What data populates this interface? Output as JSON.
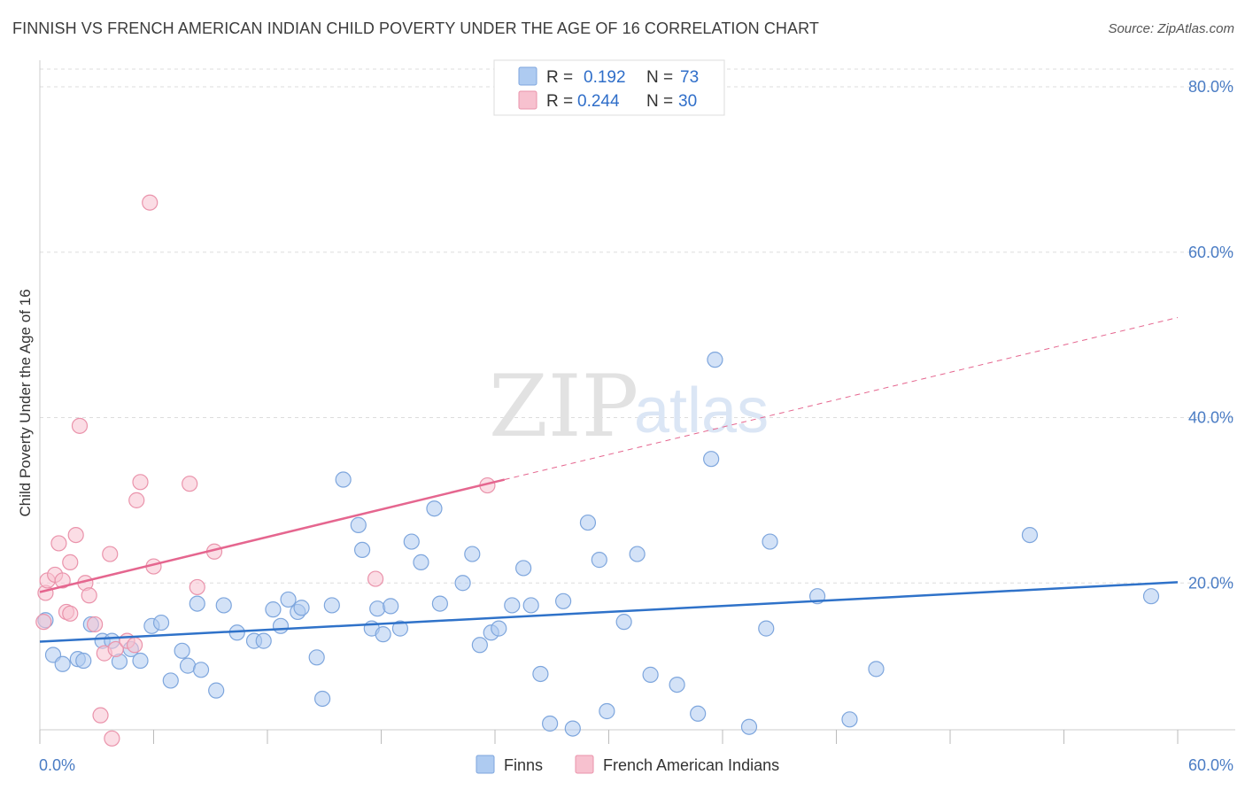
{
  "title": "FINNISH VS FRENCH AMERICAN INDIAN CHILD POVERTY UNDER THE AGE OF 16 CORRELATION CHART",
  "source": "Source: ZipAtlas.com",
  "watermark": {
    "zip": "ZIP",
    "atlas": "atlas"
  },
  "legend": {
    "r_label": "R =",
    "n_label": "N =",
    "finns": {
      "r": "0.192",
      "n": "73"
    },
    "french": {
      "r": "0.244",
      "n": "30"
    }
  },
  "colors": {
    "finns_fill": "#aecbf1",
    "finns_stroke": "#7ea6dd",
    "finns_line": "#2f72c9",
    "french_fill": "#f7c1cf",
    "french_stroke": "#ea93ab",
    "french_line": "#e5668f",
    "grid": "#dddddd",
    "tick_text": "#4a7cc4"
  },
  "chart_data": {
    "type": "scatter",
    "ylabel": "Child Poverty Under the Age of 16",
    "xlabel": "",
    "xlim": [
      0,
      60
    ],
    "ylim": [
      0,
      85
    ],
    "x_tick_labels": [
      {
        "value": 0,
        "label": "0.0%"
      },
      {
        "value": 60,
        "label": "60.0%"
      }
    ],
    "y_tick_labels": [
      {
        "value": 20,
        "label": "20.0%"
      },
      {
        "value": 40,
        "label": "40.0%"
      },
      {
        "value": 60,
        "label": "60.0%"
      },
      {
        "value": 80,
        "label": "80.0%"
      }
    ],
    "grid": true,
    "legend_position": "top-center and bottom",
    "series": [
      {
        "name": "Finns",
        "trend": {
          "x": [
            0,
            60
          ],
          "y": [
            12.9,
            20.1
          ],
          "dashed_after": null
        },
        "points": [
          [
            0.3,
            15.5
          ],
          [
            0.7,
            11.3
          ],
          [
            1.2,
            10.2
          ],
          [
            2.0,
            10.8
          ],
          [
            2.3,
            10.6
          ],
          [
            2.7,
            15.0
          ],
          [
            3.3,
            13.0
          ],
          [
            3.8,
            13.0
          ],
          [
            4.2,
            10.5
          ],
          [
            4.8,
            12.0
          ],
          [
            5.3,
            10.6
          ],
          [
            5.9,
            14.8
          ],
          [
            6.4,
            15.2
          ],
          [
            6.9,
            8.2
          ],
          [
            7.5,
            11.8
          ],
          [
            7.8,
            10.0
          ],
          [
            8.5,
            9.5
          ],
          [
            8.3,
            17.5
          ],
          [
            9.3,
            7.0
          ],
          [
            9.7,
            17.3
          ],
          [
            10.4,
            14.0
          ],
          [
            11.3,
            13.0
          ],
          [
            11.8,
            13.0
          ],
          [
            12.3,
            16.8
          ],
          [
            12.7,
            14.8
          ],
          [
            13.1,
            18.0
          ],
          [
            13.6,
            16.5
          ],
          [
            13.8,
            17.0
          ],
          [
            14.6,
            11.0
          ],
          [
            14.9,
            6.0
          ],
          [
            15.4,
            17.3
          ],
          [
            16.0,
            32.5
          ],
          [
            16.8,
            27.0
          ],
          [
            17.0,
            24.0
          ],
          [
            17.5,
            14.5
          ],
          [
            17.8,
            16.9
          ],
          [
            18.1,
            13.8
          ],
          [
            18.5,
            17.2
          ],
          [
            19.0,
            14.5
          ],
          [
            19.6,
            25.0
          ],
          [
            20.1,
            22.5
          ],
          [
            20.8,
            29.0
          ],
          [
            21.1,
            17.5
          ],
          [
            22.3,
            20.0
          ],
          [
            22.8,
            23.5
          ],
          [
            23.2,
            12.5
          ],
          [
            23.8,
            14.0
          ],
          [
            24.2,
            14.5
          ],
          [
            24.9,
            17.3
          ],
          [
            25.5,
            21.8
          ],
          [
            25.9,
            17.3
          ],
          [
            26.4,
            9.0
          ],
          [
            26.9,
            3.0
          ],
          [
            27.6,
            17.8
          ],
          [
            28.1,
            2.4
          ],
          [
            28.9,
            27.3
          ],
          [
            29.5,
            22.8
          ],
          [
            29.9,
            4.5
          ],
          [
            30.8,
            15.3
          ],
          [
            31.5,
            23.5
          ],
          [
            32.2,
            8.9
          ],
          [
            33.6,
            7.7
          ],
          [
            34.7,
            4.2
          ],
          [
            35.4,
            35.0
          ],
          [
            35.6,
            47.0
          ],
          [
            37.4,
            2.6
          ],
          [
            38.3,
            14.5
          ],
          [
            38.5,
            25.0
          ],
          [
            41.0,
            18.4
          ],
          [
            42.7,
            3.5
          ],
          [
            44.1,
            9.6
          ],
          [
            52.2,
            25.8
          ],
          [
            58.6,
            18.4
          ]
        ]
      },
      {
        "name": "French American Indians",
        "trend": {
          "x": [
            0,
            24.5,
            60
          ],
          "y": [
            18.9,
            32.5,
            52.1
          ],
          "dashed_after": 24.5
        },
        "points": [
          [
            0.2,
            15.3
          ],
          [
            0.3,
            18.8
          ],
          [
            0.4,
            20.3
          ],
          [
            0.8,
            21.0
          ],
          [
            1.0,
            24.8
          ],
          [
            1.2,
            20.3
          ],
          [
            1.4,
            16.5
          ],
          [
            1.6,
            16.3
          ],
          [
            1.6,
            22.5
          ],
          [
            1.9,
            25.8
          ],
          [
            2.1,
            39.0
          ],
          [
            2.4,
            20.0
          ],
          [
            2.6,
            18.5
          ],
          [
            2.9,
            15.0
          ],
          [
            3.2,
            4.0
          ],
          [
            3.4,
            11.5
          ],
          [
            3.7,
            23.5
          ],
          [
            3.8,
            1.2
          ],
          [
            4.0,
            12.0
          ],
          [
            4.6,
            13.0
          ],
          [
            5.0,
            12.5
          ],
          [
            5.1,
            30.0
          ],
          [
            5.3,
            32.2
          ],
          [
            5.8,
            66.0
          ],
          [
            6.0,
            22.0
          ],
          [
            7.9,
            32.0
          ],
          [
            8.3,
            19.5
          ],
          [
            9.2,
            23.8
          ],
          [
            17.7,
            20.5
          ],
          [
            23.6,
            31.8
          ]
        ]
      }
    ]
  },
  "bottom_legend": {
    "finns": "Finns",
    "french": "French American Indians"
  }
}
